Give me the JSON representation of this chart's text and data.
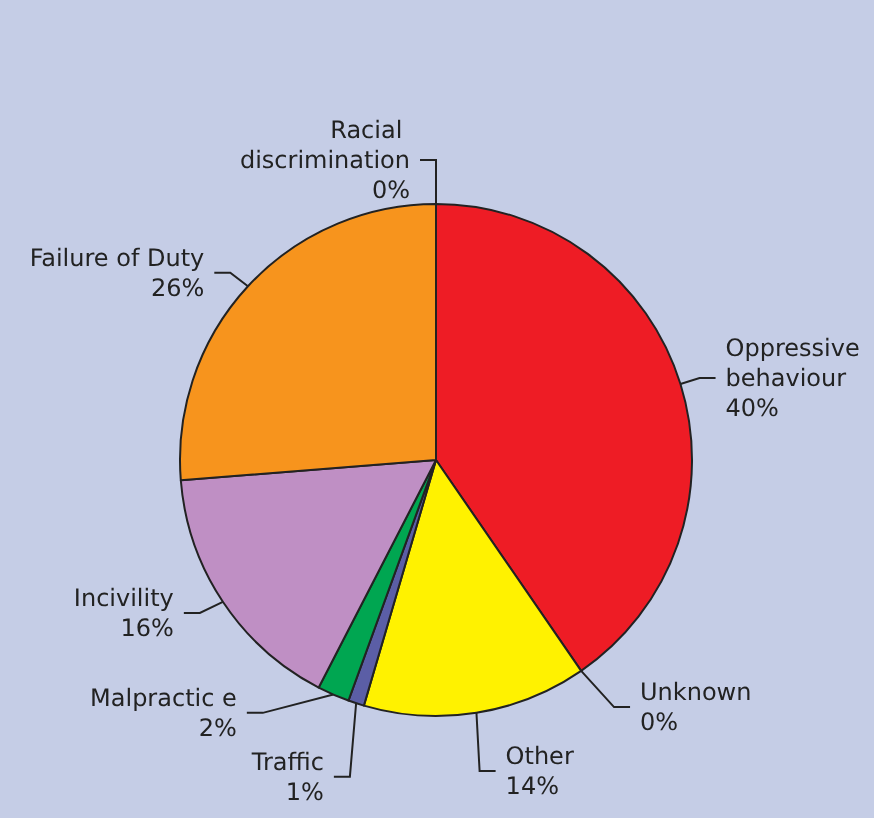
{
  "chart_data": {
    "type": "pie",
    "categories": [
      "Oppressive behaviour",
      "Unknown",
      "Other",
      "Traffic",
      "Malpractic e",
      "Incivility",
      "Failure of Duty",
      "Racial discrimination"
    ],
    "values": [
      40,
      0,
      14,
      1,
      2,
      16,
      26,
      0
    ],
    "value_labels": [
      "40%",
      "0%",
      "14%",
      "1%",
      "2%",
      "16%",
      "26%",
      "0%"
    ],
    "colors": [
      "#ee1c25",
      null,
      "#fff200",
      "#5b5ea6",
      "#00a651",
      "#bf8fc4",
      "#f7941d",
      null
    ]
  }
}
